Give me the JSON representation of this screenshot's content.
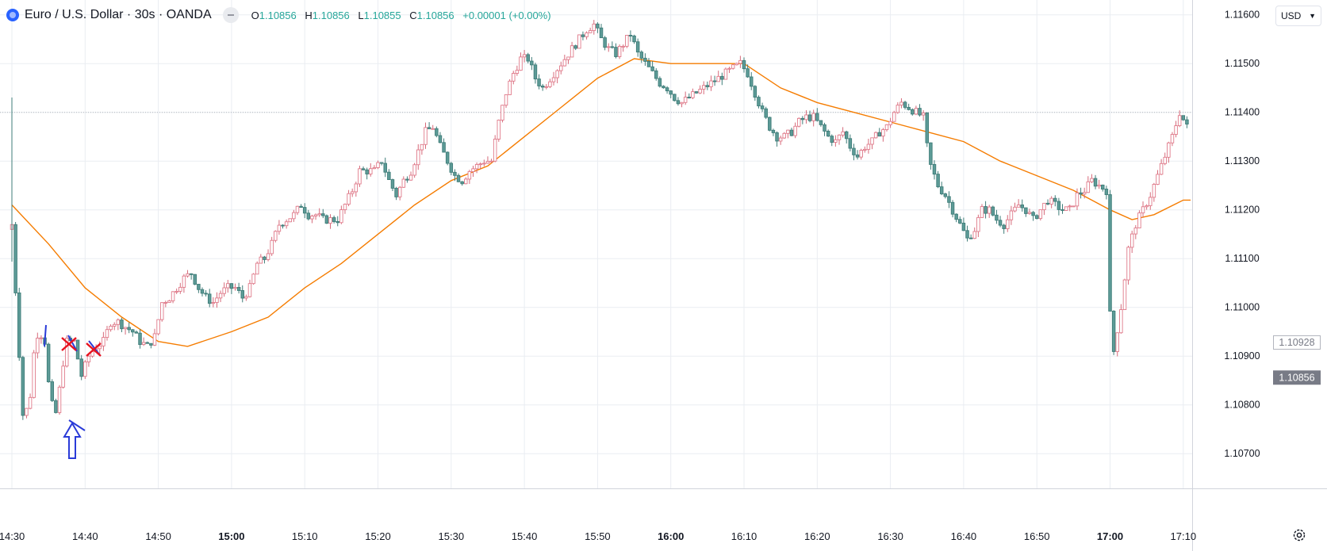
{
  "header": {
    "symbol_title": "Euro / U.S. Dollar · 30s · OANDA",
    "ohlc": [
      {
        "key": "O",
        "value": "1.10856"
      },
      {
        "key": "H",
        "value": "1.10856"
      },
      {
        "key": "L",
        "value": "1.10855"
      },
      {
        "key": "C",
        "value": "1.10856"
      }
    ],
    "change": "+0.00001 (+0.00%)"
  },
  "currency_button": {
    "label": "USD",
    "chevron": "chevron-down-icon"
  },
  "settings": {
    "icon": "gear-icon"
  },
  "colors": {
    "up": "#f4a9b3",
    "down": "#5d9b97",
    "ma": "#f57c00",
    "grid": "#eaedf2",
    "annotation_blue": "#2a3bd8",
    "annotation_red": "#e8121e",
    "price_tag_last": "#787b86"
  },
  "chart_data": {
    "type": "candlestick",
    "ylim": [
      1.1063,
      1.1158
    ],
    "y_ticks": [
      "1.10700",
      "1.10800",
      "1.10900",
      "1.11000",
      "1.11100",
      "1.11200",
      "1.11300",
      "1.11400",
      "1.11500",
      "1.11600"
    ],
    "x_ticks": [
      {
        "label": "14:30",
        "minute": 0,
        "bold": false
      },
      {
        "label": "14:40",
        "minute": 10,
        "bold": false
      },
      {
        "label": "14:50",
        "minute": 20,
        "bold": false
      },
      {
        "label": "15:00",
        "minute": 30,
        "bold": true
      },
      {
        "label": "15:10",
        "minute": 40,
        "bold": false
      },
      {
        "label": "15:20",
        "minute": 50,
        "bold": false
      },
      {
        "label": "15:30",
        "minute": 60,
        "bold": false
      },
      {
        "label": "15:40",
        "minute": 70,
        "bold": false
      },
      {
        "label": "15:50",
        "minute": 80,
        "bold": false
      },
      {
        "label": "16:00",
        "minute": 90,
        "bold": true
      },
      {
        "label": "16:10",
        "minute": 100,
        "bold": false
      },
      {
        "label": "16:20",
        "minute": 110,
        "bold": false
      },
      {
        "label": "16:30",
        "minute": 120,
        "bold": false
      },
      {
        "label": "16:40",
        "minute": 130,
        "bold": false
      },
      {
        "label": "16:50",
        "minute": 140,
        "bold": false
      },
      {
        "label": "17:00",
        "minute": 150,
        "bold": true
      },
      {
        "label": "17:10",
        "minute": 160,
        "bold": false
      }
    ],
    "price_path": [
      [
        0,
        1.1116
      ],
      [
        0.5,
        1.1117
      ],
      [
        1.2,
        1.1098
      ],
      [
        2,
        1.1078
      ],
      [
        2.5,
        1.1079
      ],
      [
        3,
        1.1082
      ],
      [
        3.7,
        1.1094
      ],
      [
        4.3,
        1.1095
      ],
      [
        5,
        1.1093
      ],
      [
        5.7,
        1.1081
      ],
      [
        6.6,
        1.1078
      ],
      [
        7.3,
        1.1087
      ],
      [
        8,
        1.1093
      ],
      [
        9,
        1.1093
      ],
      [
        10,
        1.1086
      ],
      [
        11,
        1.109
      ],
      [
        12,
        1.1092
      ],
      [
        13,
        1.1093
      ],
      [
        14,
        1.1097
      ],
      [
        15,
        1.1097
      ],
      [
        16,
        1.1096
      ],
      [
        17,
        1.1095
      ],
      [
        18,
        1.1093
      ],
      [
        19,
        1.1092
      ],
      [
        20,
        1.1094
      ],
      [
        21,
        1.1101
      ],
      [
        22,
        1.1102
      ],
      [
        23,
        1.1104
      ],
      [
        24,
        1.1106
      ],
      [
        25,
        1.1107
      ],
      [
        26,
        1.1104
      ],
      [
        27,
        1.1102
      ],
      [
        28,
        1.1101
      ],
      [
        29,
        1.1103
      ],
      [
        30,
        1.1104
      ],
      [
        31,
        1.1104
      ],
      [
        32,
        1.1102
      ],
      [
        33,
        1.1104
      ],
      [
        34,
        1.1109
      ],
      [
        35,
        1.111
      ],
      [
        36,
        1.1113
      ],
      [
        37,
        1.1117
      ],
      [
        38,
        1.1118
      ],
      [
        39,
        1.1119
      ],
      [
        40,
        1.1121
      ],
      [
        41,
        1.1119
      ],
      [
        42,
        1.1119
      ],
      [
        43,
        1.1118
      ],
      [
        44,
        1.1118
      ],
      [
        45,
        1.1118
      ],
      [
        46,
        1.1121
      ],
      [
        47,
        1.1124
      ],
      [
        48,
        1.1128
      ],
      [
        49,
        1.1128
      ],
      [
        50,
        1.1128
      ],
      [
        51,
        1.113
      ],
      [
        52,
        1.1126
      ],
      [
        53,
        1.1123
      ],
      [
        54,
        1.1126
      ],
      [
        55,
        1.1128
      ],
      [
        56,
        1.1132
      ],
      [
        57,
        1.1136
      ],
      [
        58,
        1.1137
      ],
      [
        59,
        1.1133
      ],
      [
        60,
        1.113
      ],
      [
        61,
        1.1127
      ],
      [
        62,
        1.1126
      ],
      [
        63,
        1.1128
      ],
      [
        64,
        1.1129
      ],
      [
        65,
        1.113
      ],
      [
        66,
        1.113
      ],
      [
        67,
        1.1138
      ],
      [
        68,
        1.1144
      ],
      [
        69,
        1.1148
      ],
      [
        70,
        1.1151
      ],
      [
        71,
        1.1151
      ],
      [
        72,
        1.1147
      ],
      [
        73,
        1.1145
      ],
      [
        74,
        1.1147
      ],
      [
        75,
        1.1149
      ],
      [
        76,
        1.1151
      ],
      [
        77,
        1.1153
      ],
      [
        78,
        1.1155
      ],
      [
        79,
        1.1157
      ],
      [
        80,
        1.1158
      ],
      [
        81,
        1.1155
      ],
      [
        82,
        1.1153
      ],
      [
        83,
        1.1152
      ],
      [
        84,
        1.1154
      ],
      [
        85,
        1.1156
      ],
      [
        86,
        1.1152
      ],
      [
        87,
        1.115
      ],
      [
        88,
        1.1148
      ],
      [
        89,
        1.1146
      ],
      [
        90,
        1.1145
      ],
      [
        91,
        1.1143
      ],
      [
        92,
        1.1142
      ],
      [
        93,
        1.1143
      ],
      [
        94,
        1.1144
      ],
      [
        95,
        1.1145
      ],
      [
        96,
        1.1146
      ],
      [
        97,
        1.1147
      ],
      [
        98,
        1.1148
      ],
      [
        99,
        1.1149
      ],
      [
        100,
        1.115
      ],
      [
        101,
        1.1148
      ],
      [
        102,
        1.1144
      ],
      [
        103,
        1.114
      ],
      [
        104,
        1.1137
      ],
      [
        105,
        1.1135
      ],
      [
        106,
        1.1135
      ],
      [
        107,
        1.1136
      ],
      [
        108,
        1.1138
      ],
      [
        109,
        1.1139
      ],
      [
        110,
        1.1139
      ],
      [
        111,
        1.1137
      ],
      [
        112,
        1.1135
      ],
      [
        113,
        1.1134
      ],
      [
        114,
        1.1136
      ],
      [
        115,
        1.1133
      ],
      [
        116,
        1.1131
      ],
      [
        117,
        1.1133
      ],
      [
        118,
        1.1134
      ],
      [
        119,
        1.1136
      ],
      [
        120,
        1.1137
      ],
      [
        121,
        1.114
      ],
      [
        122,
        1.1142
      ],
      [
        123,
        1.1141
      ],
      [
        124,
        1.114
      ],
      [
        125,
        1.1139
      ],
      [
        125.5,
        1.1133
      ],
      [
        126,
        1.1129
      ],
      [
        127,
        1.1125
      ],
      [
        128,
        1.1123
      ],
      [
        129,
        1.112
      ],
      [
        130,
        1.1117
      ],
      [
        131,
        1.1114
      ],
      [
        132,
        1.1116
      ],
      [
        133,
        1.112
      ],
      [
        134,
        1.112
      ],
      [
        135,
        1.1118
      ],
      [
        136,
        1.1117
      ],
      [
        137,
        1.1119
      ],
      [
        138,
        1.1121
      ],
      [
        139,
        1.112
      ],
      [
        140,
        1.1118
      ],
      [
        141,
        1.112
      ],
      [
        142,
        1.1122
      ],
      [
        143,
        1.1121
      ],
      [
        144,
        1.112
      ],
      [
        145,
        1.112
      ],
      [
        146,
        1.1123
      ],
      [
        147,
        1.1124
      ],
      [
        148,
        1.1126
      ],
      [
        149,
        1.1125
      ],
      [
        150,
        1.1124
      ],
      [
        150.4,
        1.11
      ],
      [
        151,
        1.1091
      ],
      [
        152,
        1.11
      ],
      [
        153,
        1.1112
      ],
      [
        154,
        1.1117
      ],
      [
        155,
        1.112
      ],
      [
        156,
        1.1123
      ],
      [
        157,
        1.1127
      ],
      [
        158,
        1.1131
      ],
      [
        159,
        1.1135
      ],
      [
        160,
        1.114
      ],
      [
        161,
        1.1137
      ]
    ],
    "ma_path": [
      [
        0,
        1.1121
      ],
      [
        5,
        1.1113
      ],
      [
        10,
        1.1104
      ],
      [
        15,
        1.1098
      ],
      [
        20,
        1.1093
      ],
      [
        24,
        1.1092
      ],
      [
        30,
        1.1095
      ],
      [
        35,
        1.1098
      ],
      [
        40,
        1.1104
      ],
      [
        45,
        1.1109
      ],
      [
        50,
        1.1115
      ],
      [
        55,
        1.1121
      ],
      [
        60,
        1.1126
      ],
      [
        65,
        1.1129
      ],
      [
        70,
        1.1135
      ],
      [
        75,
        1.1141
      ],
      [
        80,
        1.1147
      ],
      [
        85,
        1.1151
      ],
      [
        90,
        1.115
      ],
      [
        95,
        1.115
      ],
      [
        100,
        1.115
      ],
      [
        105,
        1.1145
      ],
      [
        110,
        1.1142
      ],
      [
        115,
        1.114
      ],
      [
        120,
        1.1138
      ],
      [
        125,
        1.1136
      ],
      [
        130,
        1.1134
      ],
      [
        135,
        1.113
      ],
      [
        140,
        1.1127
      ],
      [
        145,
        1.1124
      ],
      [
        150,
        1.112
      ],
      [
        153,
        1.1118
      ],
      [
        156,
        1.1119
      ],
      [
        160,
        1.1122
      ],
      [
        161,
        1.1122
      ]
    ],
    "price_tags": [
      {
        "label": "1.10928",
        "price": 1.10928,
        "style": "outline"
      },
      {
        "label": "1.10856",
        "price": 1.10856,
        "style": "filled"
      }
    ],
    "dotted_price_line": 1.114,
    "annotations": [
      "up-arrow",
      "red-x-mark",
      "red-x-mark",
      "blue-strokes"
    ]
  }
}
